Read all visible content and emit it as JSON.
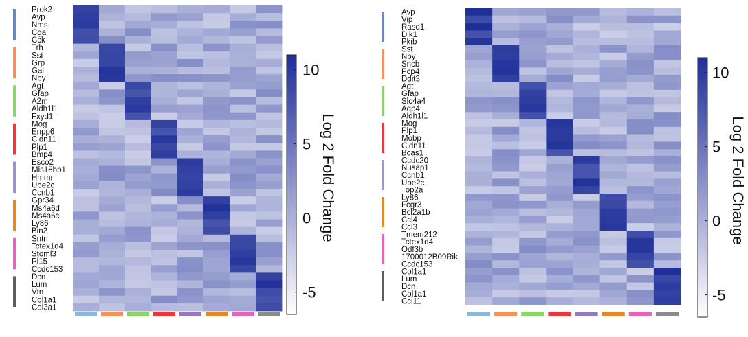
{
  "chart_data": [
    {
      "type": "heatmap",
      "title": "",
      "colorbar": {
        "label": "Log 2 Fold Change",
        "ticks": [
          10,
          5,
          0,
          -5
        ],
        "range": [
          -6.5,
          11
        ],
        "color_low": "#ffffff",
        "color_high": "#1f2f99"
      },
      "cluster_colors": [
        "#8fb6d4",
        "#f2935e",
        "#8bd46a",
        "#e8393f",
        "#9479b8",
        "#e08a2e",
        "#e165b9",
        "#8a8a8a"
      ],
      "cluster_bar_colors": [
        "#6b87c4",
        "#f2935e",
        "#8bd46a",
        "#e8393f",
        "#9b94c8",
        "#e08a2e",
        "#e165b9",
        "#5c5c5c"
      ],
      "genes": [
        "Prok2",
        "Avp",
        "Nms",
        "Cga",
        "Cck",
        "Trh",
        "Sst",
        "Grp",
        "Gal",
        "Npy",
        "Agt",
        "Gfap",
        "A2m",
        "Aldh1l1",
        "Fxyd1",
        "Mog",
        "Enpp6",
        "Cldn11",
        "Plp1",
        "Bmp4",
        "Esco2",
        "Mis18bp1",
        "Hmmr",
        "Ube2c",
        "Ccnb1",
        "Gpr34",
        "Ms4a6d",
        "Ms4a6c",
        "Ly86",
        "Bin2",
        "Sntn",
        "Tctex1d4",
        "Stoml3",
        "Pi15",
        "Ccdc153",
        "Dcn",
        "Lum",
        "Vtn",
        "Col1a1",
        "Col3a1"
      ],
      "label_spacing": [
        1.28,
        1.28,
        1.28,
        1.9,
        1.26
      ]
    },
    {
      "type": "heatmap",
      "title": "",
      "colorbar": {
        "label": "Log 2 Fold Change",
        "ticks": [
          10,
          5,
          0,
          -5
        ],
        "range": [
          -6.5,
          11
        ],
        "color_low": "#ffffff",
        "color_high": "#1f2f99"
      },
      "cluster_colors": [
        "#8fb6d4",
        "#f2935e",
        "#8bd46a",
        "#e8393f",
        "#9479b8",
        "#e08a2e",
        "#e165b9",
        "#8a8a8a"
      ],
      "cluster_bar_colors": [
        "#6b87c4",
        "#f2935e",
        "#8bd46a",
        "#e8393f",
        "#9b94c8",
        "#e08a2e",
        "#e165b9",
        "#5c5c5c"
      ],
      "genes": [
        "Avp",
        "Vip",
        "Rasd1",
        "Dlk1",
        "Pkib",
        "Sst",
        "Npy",
        "Sncb",
        "Pcp4",
        "Ddit3",
        "Agt",
        "Gfap",
        "Slc4a4",
        "Aqp4",
        "Aldh1l1",
        "Mog",
        "Plp1",
        "Mobp",
        "Cldn11",
        "Bcas1",
        "Ccdc20",
        "Nusap1",
        "Ccnb1",
        "Ube2c",
        "Top2a",
        "Ly86",
        "Fcgr3",
        "Bcl2a1b",
        "Ccl4",
        "Ccl3",
        "Tmem212",
        "Tctex1d4",
        "Odf3b",
        "1700012B09Rik",
        "Ccdc153",
        "Col1a1",
        "Lum",
        "Dcn",
        "Col1a1",
        "Ccl11"
      ],
      "label_spacing": [
        1.22,
        1.22,
        1.5,
        1.22,
        1.22
      ]
    }
  ]
}
